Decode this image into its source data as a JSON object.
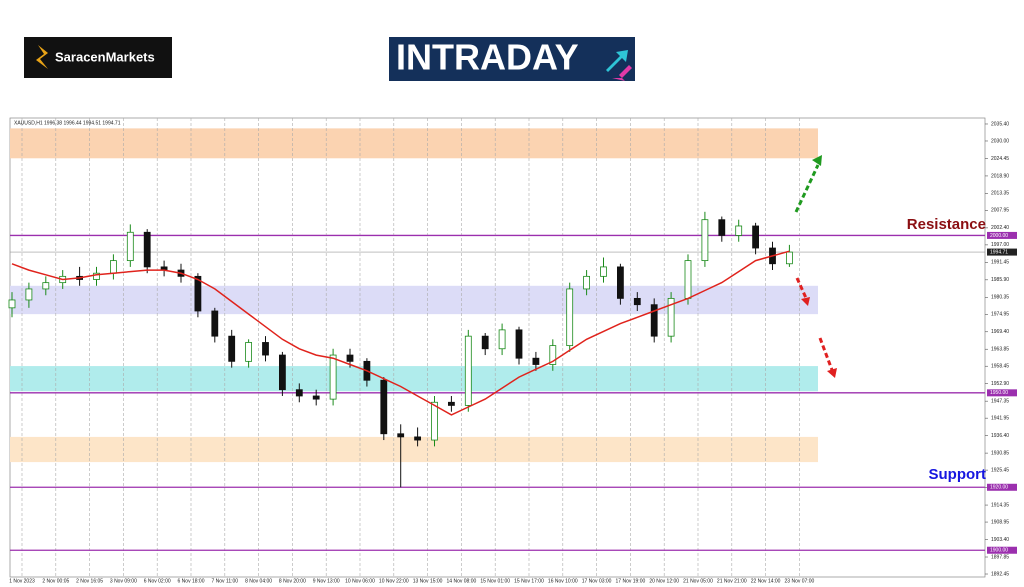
{
  "header": {
    "brand": "SaracenMarkets",
    "banner": "INTRADAY"
  },
  "chart_data": {
    "type": "candlestick",
    "title": "XAUUSD,H1  1996.38 1996.44 1994.51 1994.71",
    "x_labels": [
      "1 Nov 2023",
      "2 Nov 00:05",
      "2 Nov 16:05",
      "3 Nov 09:00",
      "6 Nov 02:00",
      "6 Nov 18:00",
      "7 Nov 11:00",
      "8 Nov 04:00",
      "8 Nov 20:00",
      "9 Nov 13:00",
      "10 Nov 06:00",
      "10 Nov 22:00",
      "13 Nov 15:00",
      "14 Nov 08:00",
      "15 Nov 01:00",
      "15 Nov 17:00",
      "16 Nov 10:00",
      "17 Nov 03:00",
      "17 Nov 19:00",
      "20 Nov 12:00",
      "21 Nov 05:00",
      "21 Nov 21:00",
      "22 Nov 14:00",
      "23 Nov 07:00"
    ],
    "open": [
      1977,
      1979.5,
      1983,
      1985,
      1987,
      1986,
      1988,
      1992,
      2001,
      1990,
      1989,
      1987,
      1976,
      1968,
      1960,
      1966,
      1962,
      1951,
      1949,
      1948,
      1962,
      1960,
      1954,
      1937,
      1936,
      1935,
      1947,
      1946,
      1968,
      1964,
      1970,
      1961,
      1959,
      1965,
      1983,
      1987,
      1990,
      1980,
      1978,
      1968,
      1980,
      1992,
      2005,
      2000,
      2003,
      1996,
      1991
    ],
    "high": [
      1982,
      1985,
      1987,
      1989,
      1990,
      1990,
      1994,
      2003.5,
      2002,
      1992,
      1991,
      1988,
      1977,
      1970,
      1967,
      1968,
      1963,
      1953,
      1951,
      1964,
      1964,
      1961,
      1955,
      1940,
      1939,
      1949,
      1949,
      1970,
      1969,
      1972,
      1971,
      1963,
      1967,
      1985,
      1989,
      1993,
      1991,
      1982,
      1980,
      1982,
      1994,
      2007.5,
      2006,
      2005,
      2004,
      1998,
      1997
    ],
    "low": [
      1974,
      1977,
      1981,
      1983,
      1984,
      1984,
      1986,
      1990,
      1988,
      1987,
      1985,
      1974,
      1966,
      1958,
      1958,
      1960,
      1949,
      1947,
      1946,
      1946,
      1958,
      1952,
      1935,
      1920,
      1933,
      1933,
      1944,
      1944,
      1962,
      1962,
      1959,
      1957,
      1957,
      1963,
      1981,
      1985,
      1978,
      1976,
      1966,
      1966,
      1978,
      1990,
      1998,
      1998,
      1994,
      1989,
      1990
    ],
    "close": [
      1979.5,
      1983,
      1985,
      1987,
      1986,
      1988,
      1992,
      2001,
      1990,
      1989,
      1987,
      1976,
      1968,
      1960,
      1966,
      1962,
      1951,
      1949,
      1948,
      1962,
      1960,
      1954,
      1937,
      1936,
      1935,
      1947,
      1946,
      1968,
      1964,
      1970,
      1961,
      1959,
      1965,
      1983,
      1987,
      1990,
      1980,
      1978,
      1968,
      1980,
      1992,
      2005,
      2000,
      2003,
      1996,
      1991,
      1994.71
    ],
    "ma": [
      1991,
      1989,
      1987.5,
      1986,
      1986.5,
      1987.5,
      1988,
      1988.5,
      1989,
      1989,
      1988,
      1986,
      1983,
      1979,
      1975,
      1971,
      1967,
      1964,
      1962,
      1961,
      1959,
      1957,
      1954.5,
      1952,
      1949,
      1946,
      1943,
      1945.5,
      1948,
      1951.5,
      1955,
      1957.5,
      1960,
      1963.5,
      1967,
      1969.5,
      1972,
      1974,
      1976,
      1978,
      1980,
      1982.5,
      1985,
      1988.5,
      1992,
      1993.5,
      1995
    ],
    "up_color": "#1a8a1a",
    "down_color": "#111111",
    "ma_color": "#e0231c",
    "ylim": [
      1891.5,
      2037.3
    ],
    "yticks": [
      {
        "value": 2035.4,
        "label": "2035.40"
      },
      {
        "value": 2030.0,
        "label": "2030.00"
      },
      {
        "value": 2024.45,
        "label": "2024.45"
      },
      {
        "value": 2018.9,
        "label": "2018.90"
      },
      {
        "value": 2013.35,
        "label": "2013.35"
      },
      {
        "value": 2007.95,
        "label": "2007.95"
      },
      {
        "value": 2002.4,
        "label": "2002.40"
      },
      {
        "value": 1997.0,
        "label": "1997.00"
      },
      {
        "value": 1991.45,
        "label": "1991.45"
      },
      {
        "value": 1985.9,
        "label": "1985.90"
      },
      {
        "value": 1980.35,
        "label": "1980.35"
      },
      {
        "value": 1974.95,
        "label": "1974.95"
      },
      {
        "value": 1969.4,
        "label": "1969.40"
      },
      {
        "value": 1963.85,
        "label": "1963.85"
      },
      {
        "value": 1958.45,
        "label": "1958.45"
      },
      {
        "value": 1952.9,
        "label": "1952.90"
      },
      {
        "value": 1947.35,
        "label": "1947.35"
      },
      {
        "value": 1941.95,
        "label": "1941.95"
      },
      {
        "value": 1936.4,
        "label": "1936.40"
      },
      {
        "value": 1930.85,
        "label": "1930.85"
      },
      {
        "value": 1925.45,
        "label": "1925.45"
      },
      {
        "value": 1919.9,
        "label": "1919.90"
      },
      {
        "value": 1914.35,
        "label": "1914.35"
      },
      {
        "value": 1908.95,
        "label": "1908.95"
      },
      {
        "value": 1903.4,
        "label": "1903.40"
      },
      {
        "value": 1897.85,
        "label": "1897.85"
      },
      {
        "value": 1892.45,
        "label": "1892.45"
      }
    ],
    "zones": [
      {
        "range": [
          2024.5,
          2034.0
        ],
        "color": "#fbd3b1"
      },
      {
        "range": [
          1975.0,
          1984.0
        ],
        "color": "#dcdcf7"
      },
      {
        "range": [
          1950.5,
          1958.5
        ],
        "color": "#b0ecec"
      },
      {
        "range": [
          1928.0,
          1936.0
        ],
        "color": "#fde5c8"
      }
    ],
    "levels": [
      {
        "value": 2000.0,
        "label": "2000.00"
      },
      {
        "value": 1950.0,
        "label": "1950.00"
      },
      {
        "value": 1920.0,
        "label": "1920.00"
      },
      {
        "value": 1900.0,
        "label": "1900.00"
      }
    ],
    "level_color": "#9b2fae",
    "annotations": {
      "resistance": "Resistance",
      "support": "Support"
    }
  }
}
